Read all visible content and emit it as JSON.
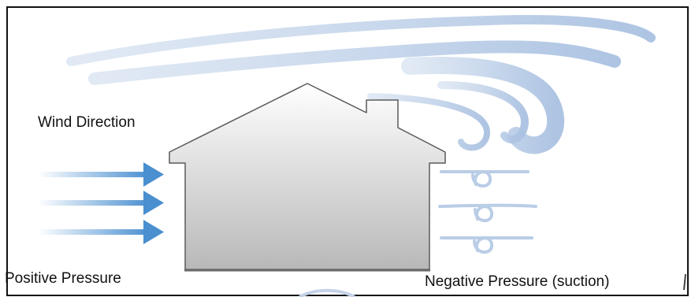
{
  "labels": {
    "wind_direction": "Wind Direction",
    "positive_pressure": "Positive Pressure",
    "negative_pressure": "Negative Pressure (suction)"
  },
  "colors": {
    "arrow": "#4a8fd0",
    "swirl": "#b9cde6",
    "house_outline": "#5a5a5a",
    "house_fill_top": "#ffffff",
    "house_fill_bottom": "#b8b8b8",
    "frame": "#111111"
  },
  "icons": [
    "wind-arrow-icon",
    "house-icon",
    "suction-swirl-icon"
  ]
}
